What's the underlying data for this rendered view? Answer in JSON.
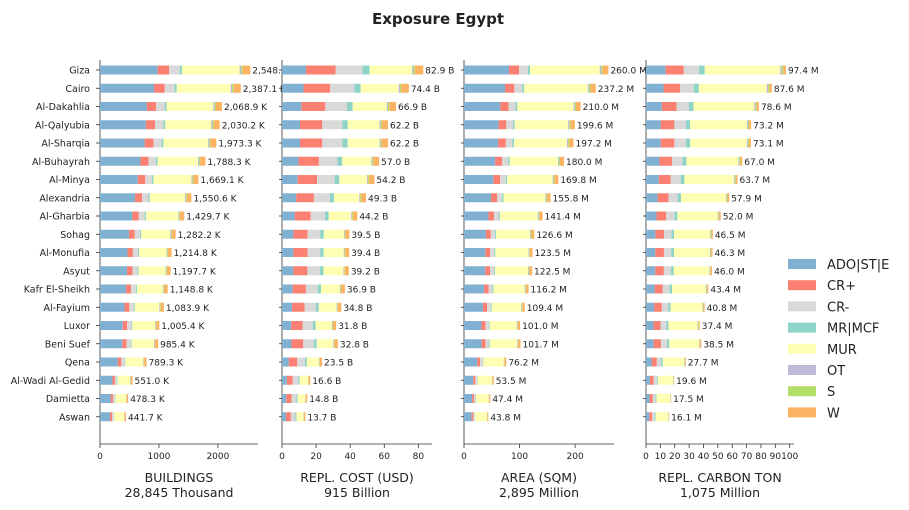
{
  "title": "Exposure Egypt",
  "chart_data": {
    "type": "bar",
    "orientation": "horizontal",
    "stacked": true,
    "title": "Exposure Egypt",
    "categories": [
      "Giza",
      "Cairo",
      "Al-Dakahlia",
      "Al-Qalyubia",
      "Al-Sharqia",
      "Al-Buhayrah",
      "Al-Minya",
      "Alexandria",
      "Al-Gharbia",
      "Sohag",
      "Al-Monufia",
      "Asyut",
      "Kafr El-Sheikh",
      "Al-Fayium",
      "Luxor",
      "Beni Suef",
      "Qena",
      "Al-Wadi Al-Gedid",
      "Damietta",
      "Aswan"
    ],
    "legend": {
      "position": "right",
      "entries": [
        {
          "name": "ADO|ST|E",
          "color": "#80b1d3"
        },
        {
          "name": "CR+",
          "color": "#fb8072"
        },
        {
          "name": "CR-",
          "color": "#d9d9d9"
        },
        {
          "name": "MR|MCF",
          "color": "#8dd3c7"
        },
        {
          "name": "MUR",
          "color": "#ffffb3"
        },
        {
          "name": "OT",
          "color": "#bebada"
        },
        {
          "name": "S",
          "color": "#b3de69"
        },
        {
          "name": "W",
          "color": "#fdb462"
        }
      ]
    },
    "panels": [
      {
        "xlabel": "BUILDINGS",
        "subtitle": "28,845 Thousand",
        "xlim": [
          0,
          2680
        ],
        "xticks": [
          0,
          1000,
          2000
        ],
        "tick_labels": [
          "0",
          "1000",
          "2000"
        ],
        "totals": [
          2548.5,
          2387.1,
          2068.9,
          2030.2,
          1973.3,
          1788.3,
          1669.1,
          1550.6,
          1429.7,
          1282.2,
          1214.8,
          1197.7,
          1148.8,
          1083.9,
          1005.4,
          985.4,
          789.3,
          551.0,
          478.3,
          441.7
        ],
        "total_labels": [
          "2,548.5 K",
          "2,387.1 K",
          "2,068.9 K",
          "2,030.2 K",
          "1,973.3 K",
          "1,788.3 K",
          "1,669.1 K",
          "1,550.6 K",
          "1,429.7 K",
          "1,282.2 K",
          "1,214.8 K",
          "1,197.7 K",
          "1,148.8 K",
          "1,083.9 K",
          "1,005.4 K",
          "985.4 K",
          "789.3 K",
          "551.0 K",
          "478.3 K",
          "441.7 K"
        ],
        "shares": [
          0.38,
          0.075,
          0.07,
          0.015,
          0.38,
          0.01,
          0.01,
          0.05
        ]
      },
      {
        "xlabel": "REPL. COST (USD)",
        "subtitle": "915 Billion",
        "xlim": [
          0,
          88
        ],
        "xticks": [
          0,
          20,
          40,
          60,
          80
        ],
        "tick_labels": [
          "0",
          "20",
          "40",
          "60",
          "80"
        ],
        "totals": [
          82.9,
          74.4,
          66.9,
          62.2,
          62.2,
          57.0,
          54.2,
          49.3,
          44.2,
          39.5,
          39.4,
          39.2,
          36.9,
          34.8,
          31.8,
          32.8,
          23.5,
          16.6,
          14.8,
          13.7
        ],
        "total_labels": [
          "82.9 B",
          "74.4 B",
          "66.9 B",
          "62.2 B",
          "62.2 B",
          "57.0 B",
          "54.2 B",
          "49.3 B",
          "44.2 B",
          "39.5 B",
          "39.4 B",
          "39.2 B",
          "36.9 B",
          "34.8 B",
          "31.8 B",
          "32.8 B",
          "23.5 B",
          "16.6 B",
          "14.8 B",
          "13.7 B"
        ],
        "shares": [
          0.17,
          0.21,
          0.19,
          0.05,
          0.3,
          0.01,
          0.01,
          0.06
        ]
      },
      {
        "xlabel": "AREA (SQM)",
        "subtitle": "2,895 Million",
        "xlim": [
          0,
          270
        ],
        "xticks": [
          0,
          100,
          200
        ],
        "tick_labels": [
          "0",
          "100",
          "200"
        ],
        "totals": [
          260.0,
          237.2,
          210.0,
          199.6,
          197.2,
          180.0,
          169.8,
          155.8,
          141.4,
          126.6,
          123.5,
          122.5,
          116.2,
          109.4,
          101.0,
          101.7,
          76.2,
          53.5,
          47.4,
          43.8
        ],
        "total_labels": [
          "260.0 M",
          "237.2 M",
          "210.0 M",
          "199.6 M",
          "197.2 M",
          "180.0 M",
          "169.8 M",
          "155.8 M",
          "141.4 M",
          "126.6 M",
          "123.5 M",
          "122.5 M",
          "116.2 M",
          "109.4 M",
          "101.0 M",
          "101.7 M",
          "76.2 M",
          "53.5 M",
          "47.4 M",
          "43.8 M"
        ],
        "shares": [
          0.31,
          0.07,
          0.06,
          0.015,
          0.48,
          0.01,
          0.01,
          0.04
        ]
      },
      {
        "xlabel": "REPL. CARBON TON",
        "subtitle": "1,075 Million",
        "xlim": [
          0,
          103
        ],
        "xticks": [
          0,
          10,
          20,
          30,
          40,
          50,
          60,
          70,
          80,
          90,
          100
        ],
        "tick_labels": [
          "0",
          "10",
          "20",
          "30",
          "40",
          "50",
          "60",
          "70",
          "80",
          "90",
          "100"
        ],
        "totals": [
          97.4,
          87.6,
          78.6,
          73.2,
          73.1,
          67.0,
          63.7,
          57.9,
          52.0,
          46.5,
          46.3,
          46.0,
          43.4,
          40.8,
          37.4,
          38.5,
          27.7,
          19.6,
          17.5,
          16.1
        ],
        "total_labels": [
          "97.4 M",
          "87.6 M",
          "78.6 M",
          "73.2 M",
          "73.1 M",
          "67.0 M",
          "63.7 M",
          "57.9 M",
          "52.0 M",
          "46.5 M",
          "46.3 M",
          "46.0 M",
          "43.4 M",
          "40.8 M",
          "37.4 M",
          "38.5 M",
          "27.7 M",
          "19.6 M",
          "17.5 M",
          "16.1 M"
        ],
        "shares": [
          0.14,
          0.13,
          0.11,
          0.04,
          0.54,
          0.01,
          0.01,
          0.02
        ]
      }
    ]
  }
}
